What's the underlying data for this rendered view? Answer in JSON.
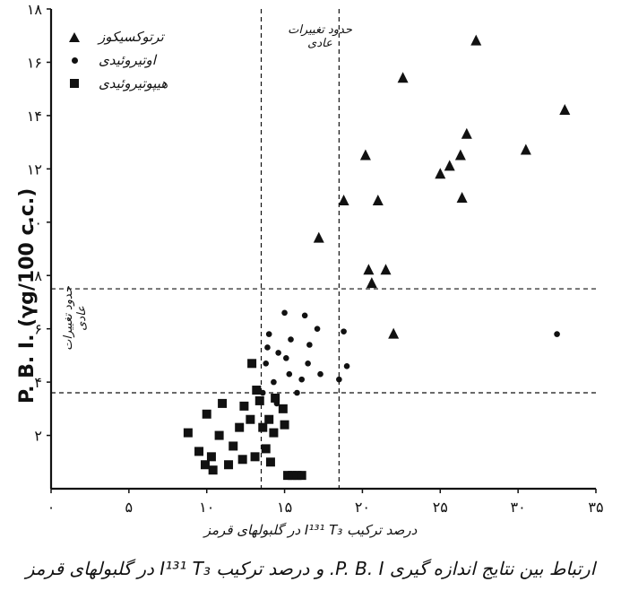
{
  "chart_data": {
    "type": "scatter",
    "title": "ارتباط بین نتایج اندازه گیری P. B. I. و درصد ترکیب I¹³¹ T₃ در گلبولهای قرمز",
    "xlabel": "درصد ترکیب I¹³¹ T₃ در گلبولهای قرمز",
    "ylabel": "P. B. I. (γg/100 c.c.)",
    "x_ticks": [
      "۰",
      "۵",
      "۱۰",
      "۱۵",
      "۲۰",
      "۲۵",
      "۳۰",
      "۳۵"
    ],
    "x_tick_values": [
      0,
      5,
      10,
      15,
      20,
      25,
      30,
      35
    ],
    "y_ticks": [
      "۲",
      "۴",
      "۶",
      "۸",
      "۱۰",
      "۱۲",
      "۱۴",
      "۱۶",
      "۱۸"
    ],
    "y_tick_values": [
      2,
      4,
      6,
      8,
      10,
      12,
      14,
      16,
      18
    ],
    "xlim": [
      0,
      35
    ],
    "ylim": [
      0,
      18
    ],
    "reference_lines": {
      "x": [
        13.5,
        18.5
      ],
      "y": [
        3.6,
        7.5
      ]
    },
    "region_labels": {
      "x_band": "حدود تغییرات عادی",
      "y_band": "حدود تغییرات عادی"
    },
    "legend_position": "top-left",
    "series": [
      {
        "name": "ترتوکسیکوز",
        "marker": "triangle",
        "points": [
          [
            17.2,
            9.4
          ],
          [
            18.8,
            10.8
          ],
          [
            20.2,
            12.5
          ],
          [
            20.4,
            8.2
          ],
          [
            20.6,
            7.7
          ],
          [
            21.0,
            10.8
          ],
          [
            21.5,
            8.2
          ],
          [
            22.0,
            5.8
          ],
          [
            22.6,
            15.4
          ],
          [
            25.0,
            11.8
          ],
          [
            25.6,
            12.1
          ],
          [
            26.3,
            12.5
          ],
          [
            26.4,
            10.9
          ],
          [
            26.7,
            13.3
          ],
          [
            27.3,
            16.8
          ],
          [
            30.5,
            12.7
          ],
          [
            33.0,
            14.2
          ]
        ]
      },
      {
        "name": "اوتیروئیدی",
        "marker": "circle",
        "points": [
          [
            13.6,
            3.6
          ],
          [
            13.8,
            4.7
          ],
          [
            13.9,
            5.3
          ],
          [
            14.0,
            5.8
          ],
          [
            14.3,
            4.0
          ],
          [
            14.5,
            3.2
          ],
          [
            14.6,
            5.1
          ],
          [
            15.0,
            6.6
          ],
          [
            15.1,
            4.9
          ],
          [
            15.3,
            4.3
          ],
          [
            15.4,
            5.6
          ],
          [
            15.8,
            3.6
          ],
          [
            16.1,
            4.1
          ],
          [
            16.3,
            6.5
          ],
          [
            16.5,
            4.7
          ],
          [
            16.6,
            5.4
          ],
          [
            17.1,
            6.0
          ],
          [
            17.3,
            4.3
          ],
          [
            18.5,
            4.1
          ],
          [
            18.8,
            5.9
          ],
          [
            19.0,
            4.6
          ],
          [
            32.5,
            5.8
          ]
        ]
      },
      {
        "name": "هیپوتیروئیدی",
        "marker": "square",
        "points": [
          [
            8.8,
            2.1
          ],
          [
            9.5,
            1.4
          ],
          [
            9.9,
            0.9
          ],
          [
            10.0,
            2.8
          ],
          [
            10.3,
            1.2
          ],
          [
            10.4,
            0.7
          ],
          [
            10.8,
            2.0
          ],
          [
            11.0,
            3.2
          ],
          [
            11.4,
            0.9
          ],
          [
            11.7,
            1.6
          ],
          [
            12.1,
            2.3
          ],
          [
            12.3,
            1.1
          ],
          [
            12.4,
            3.1
          ],
          [
            12.8,
            2.6
          ],
          [
            12.9,
            4.7
          ],
          [
            13.1,
            1.2
          ],
          [
            13.2,
            3.7
          ],
          [
            13.4,
            3.3
          ],
          [
            13.6,
            2.3
          ],
          [
            13.8,
            1.5
          ],
          [
            14.0,
            2.6
          ],
          [
            14.1,
            1.0
          ],
          [
            14.3,
            2.1
          ],
          [
            14.4,
            3.4
          ],
          [
            14.9,
            3.0
          ],
          [
            15.0,
            2.4
          ],
          [
            15.2,
            0.5
          ],
          [
            15.5,
            0.5
          ],
          [
            15.8,
            0.5
          ],
          [
            16.1,
            0.5
          ]
        ]
      }
    ]
  },
  "colors": {
    "ink": "#111111",
    "background": "#ffffff"
  }
}
